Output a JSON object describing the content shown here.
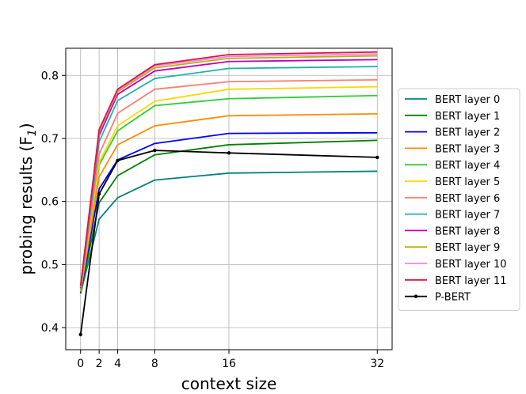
{
  "chart_data": {
    "type": "line",
    "xlabel": "context size",
    "ylabel": "probing results (F",
    "ylabel_subscript": "1",
    "ylabel_suffix": ")",
    "xticks": [
      0,
      2,
      4,
      8,
      16,
      32
    ],
    "yticks": [
      0.4,
      0.5,
      0.6,
      0.7,
      0.8
    ],
    "xlim": [
      -1.6,
      33.6
    ],
    "ylim": [
      0.365,
      0.843
    ],
    "grid": true,
    "legend_position": "right",
    "x": [
      0,
      2,
      4,
      8,
      16,
      32
    ],
    "series": [
      {
        "name": "BERT layer 0",
        "color": "#008080",
        "marker": "none",
        "values": [
          0.454,
          0.572,
          0.606,
          0.634,
          0.645,
          0.648
        ]
      },
      {
        "name": "BERT layer 1",
        "color": "#008000",
        "marker": "none",
        "values": [
          0.455,
          0.598,
          0.641,
          0.674,
          0.69,
          0.697
        ]
      },
      {
        "name": "BERT layer 2",
        "color": "#0000ff",
        "marker": "none",
        "values": [
          0.456,
          0.62,
          0.666,
          0.692,
          0.708,
          0.709
        ]
      },
      {
        "name": "BERT layer 3",
        "color": "#ff8c00",
        "marker": "none",
        "values": [
          0.457,
          0.639,
          0.69,
          0.72,
          0.736,
          0.739
        ]
      },
      {
        "name": "BERT layer 4",
        "color": "#32cd32",
        "marker": "none",
        "values": [
          0.458,
          0.658,
          0.712,
          0.752,
          0.763,
          0.768
        ]
      },
      {
        "name": "BERT layer 5",
        "color": "#ffd700",
        "marker": "none",
        "values": [
          0.459,
          0.662,
          0.72,
          0.759,
          0.778,
          0.782
        ]
      },
      {
        "name": "BERT layer 6",
        "color": "#fa8072",
        "marker": "none",
        "values": [
          0.46,
          0.675,
          0.74,
          0.778,
          0.79,
          0.793
        ]
      },
      {
        "name": "BERT layer 7",
        "color": "#20b2aa",
        "marker": "none",
        "values": [
          0.462,
          0.695,
          0.76,
          0.795,
          0.811,
          0.814
        ]
      },
      {
        "name": "BERT layer 8",
        "color": "#c000c0",
        "marker": "none",
        "values": [
          0.463,
          0.705,
          0.77,
          0.807,
          0.822,
          0.825
        ]
      },
      {
        "name": "BERT layer 9",
        "color": "#b5b500",
        "marker": "none",
        "values": [
          0.464,
          0.71,
          0.774,
          0.812,
          0.827,
          0.831
        ]
      },
      {
        "name": "BERT layer 10",
        "color": "#ee82ee",
        "marker": "none",
        "values": [
          0.465,
          0.712,
          0.776,
          0.815,
          0.83,
          0.834
        ]
      },
      {
        "name": "BERT layer 11",
        "color": "#dc143c",
        "marker": "none",
        "values": [
          0.466,
          0.714,
          0.778,
          0.817,
          0.833,
          0.837
        ]
      },
      {
        "name": "P-BERT",
        "color": "#000000",
        "marker": "dot",
        "values": [
          0.389,
          0.612,
          0.665,
          0.681,
          0.677,
          0.67
        ]
      }
    ]
  }
}
